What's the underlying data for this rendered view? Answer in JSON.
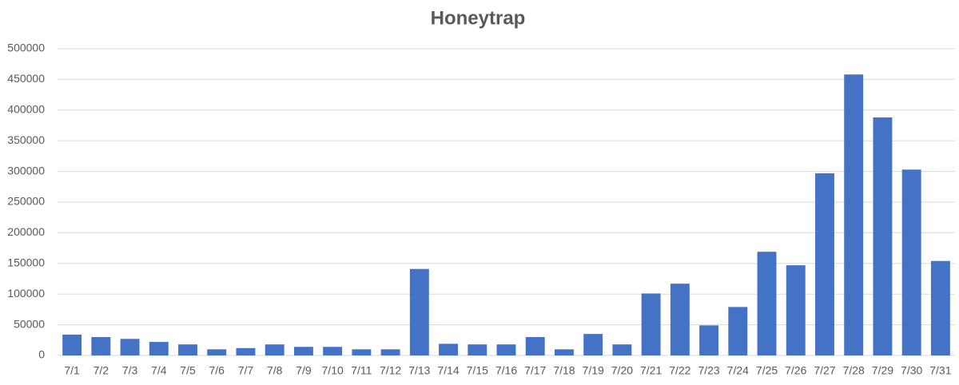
{
  "chart_data": {
    "type": "bar",
    "title": "Honeytrap",
    "categories": [
      "7/1",
      "7/2",
      "7/3",
      "7/4",
      "7/5",
      "7/6",
      "7/7",
      "7/8",
      "7/9",
      "7/10",
      "7/11",
      "7/12",
      "7/13",
      "7/14",
      "7/15",
      "7/16",
      "7/17",
      "7/18",
      "7/19",
      "7/20",
      "7/21",
      "7/22",
      "7/23",
      "7/24",
      "7/25",
      "7/26",
      "7/27",
      "7/28",
      "7/29",
      "7/30",
      "7/31"
    ],
    "values": [
      34000,
      30000,
      27000,
      22000,
      18000,
      10000,
      12000,
      18000,
      14000,
      14000,
      10000,
      10000,
      141000,
      19000,
      18000,
      18000,
      30000,
      10000,
      35000,
      18000,
      101000,
      117000,
      49000,
      79000,
      169000,
      147000,
      297000,
      458000,
      388000,
      303000,
      154000
    ],
    "color": "#4472c4",
    "ylim": [
      0,
      500000
    ],
    "yticks": [
      0,
      50000,
      100000,
      150000,
      200000,
      250000,
      300000,
      350000,
      400000,
      450000,
      500000
    ],
    "grid": true
  }
}
